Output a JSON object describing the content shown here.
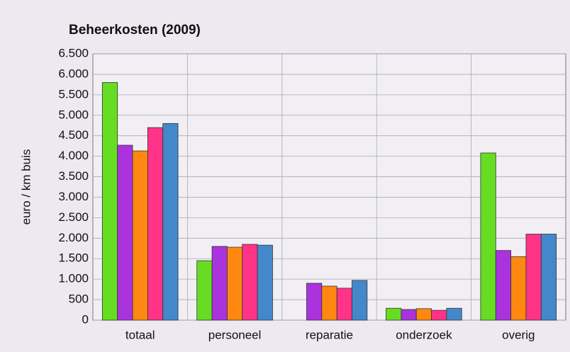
{
  "chart_data": {
    "type": "bar",
    "title": "Beheerkosten (2009)",
    "y_label": "euro / km buis",
    "categories": [
      "totaal",
      "personeel",
      "reparatie",
      "onderzoek",
      "overig"
    ],
    "series": [
      {
        "color": "#66dd22",
        "values": [
          5800,
          1450,
          null,
          290,
          4080
        ]
      },
      {
        "color": "#aa33dd",
        "values": [
          4270,
          1800,
          900,
          260,
          1700
        ]
      },
      {
        "color": "#ff8811",
        "values": [
          4130,
          1780,
          830,
          280,
          1550
        ]
      },
      {
        "color": "#ff3388",
        "values": [
          4700,
          1850,
          780,
          240,
          2100
        ]
      },
      {
        "color": "#4488cc",
        "values": [
          4800,
          1830,
          970,
          290,
          2100
        ]
      }
    ],
    "ylim": [
      0,
      6500
    ],
    "yticks": [
      0,
      500,
      {
        "value": 1000,
        "label": "1.000"
      },
      {
        "value": 1500,
        "label": "1.500"
      },
      {
        "value": 2000,
        "label": "2.000"
      },
      {
        "value": 2500,
        "label": "2.500"
      },
      {
        "value": 3000,
        "label": "3.000"
      },
      {
        "value": 3500,
        "label": "3.500"
      },
      {
        "value": 4000,
        "label": "4.000"
      },
      {
        "value": 4500,
        "label": "4.500"
      },
      {
        "value": 5000,
        "label": "5.000"
      },
      {
        "value": 5500,
        "label": "5.500"
      },
      {
        "value": 6000,
        "label": "6.000"
      },
      {
        "value": 6500,
        "label": "6.500"
      }
    ],
    "grid": true
  }
}
